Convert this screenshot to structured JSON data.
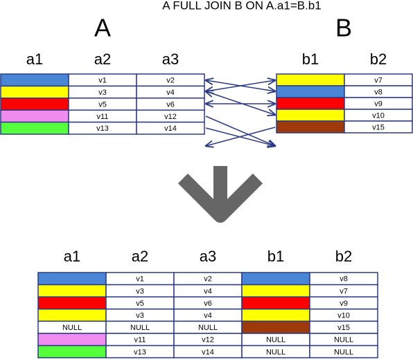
{
  "title": "A FULL JOIN B ON A.a1=B.b1",
  "table_a": {
    "label": "A",
    "headers": [
      "a1",
      "a2",
      "a3"
    ],
    "rows": [
      [
        {
          "color": "#4a86d6"
        },
        "v1",
        "v2"
      ],
      [
        {
          "color": "#ffff00"
        },
        "v3",
        "v4"
      ],
      [
        {
          "color": "#ff0000"
        },
        "v5",
        "v6"
      ],
      [
        {
          "color": "#f08cf0"
        },
        "v11",
        "v12"
      ],
      [
        {
          "color": "#55ff3c"
        },
        "v13",
        "v14"
      ]
    ]
  },
  "table_b": {
    "label": "B",
    "headers": [
      "b1",
      "b2"
    ],
    "rows": [
      [
        {
          "color": "#ffff00"
        },
        "v7"
      ],
      [
        {
          "color": "#4a86d6"
        },
        "v8"
      ],
      [
        {
          "color": "#ff0000"
        },
        "v9"
      ],
      [
        {
          "color": "#ffff00"
        },
        "v10"
      ],
      [
        {
          "color": "#9e3a0a"
        },
        "v15"
      ]
    ]
  },
  "result": {
    "headers": [
      "a1",
      "a2",
      "a3",
      "b1",
      "b2"
    ],
    "rows": [
      [
        {
          "color": "#4a86d6"
        },
        "v1",
        "v2",
        {
          "color": "#4a86d6"
        },
        "v8"
      ],
      [
        {
          "color": "#ffff00"
        },
        "v3",
        "v4",
        {
          "color": "#ffff00"
        },
        "v7"
      ],
      [
        {
          "color": "#ff0000"
        },
        "v5",
        "v6",
        {
          "color": "#ff0000"
        },
        "v9"
      ],
      [
        {
          "color": "#ffff00"
        },
        "v3",
        "v4",
        {
          "color": "#ffff00"
        },
        "v10"
      ],
      [
        "NULL",
        "NULL",
        "NULL",
        {
          "color": "#9e3a0a"
        },
        "v15"
      ],
      [
        {
          "color": "#f08cf0"
        },
        "v11",
        "v12",
        "NULL",
        "NULL"
      ],
      [
        {
          "color": "#55ff3c"
        },
        "v13",
        "v14",
        "NULL",
        "NULL"
      ]
    ]
  }
}
